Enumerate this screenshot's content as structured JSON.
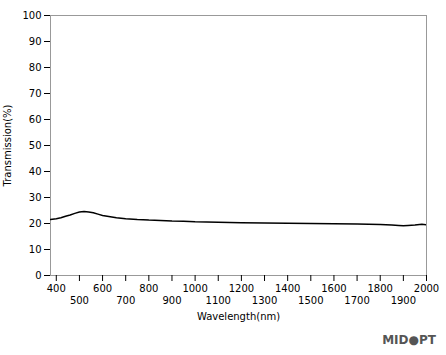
{
  "chart_data": {
    "type": "line",
    "x": [
      375,
      400,
      420,
      440,
      460,
      480,
      500,
      520,
      540,
      560,
      580,
      600,
      620,
      640,
      660,
      680,
      700,
      750,
      800,
      850,
      900,
      950,
      1000,
      1050,
      1100,
      1150,
      1200,
      1300,
      1400,
      1500,
      1600,
      1700,
      1750,
      1800,
      1850,
      1880,
      1900,
      1920,
      1950,
      1980,
      2000
    ],
    "values": [
      21.5,
      21.8,
      22.2,
      22.8,
      23.3,
      23.9,
      24.4,
      24.6,
      24.4,
      24.1,
      23.6,
      23.1,
      22.8,
      22.5,
      22.2,
      22.0,
      21.8,
      21.5,
      21.3,
      21.2,
      21.0,
      20.9,
      20.7,
      20.6,
      20.5,
      20.4,
      20.3,
      20.2,
      20.1,
      20.0,
      19.9,
      19.8,
      19.7,
      19.6,
      19.4,
      19.2,
      19.1,
      19.2,
      19.4,
      19.7,
      19.5
    ],
    "x_label": "Wavelength(nm)",
    "y_label": "Transmission(%)",
    "xlim": [
      375,
      2000
    ],
    "ylim": [
      0,
      100
    ],
    "xticks": [
      400,
      500,
      600,
      700,
      800,
      900,
      1000,
      1100,
      1200,
      1300,
      1400,
      1500,
      1600,
      1700,
      1800,
      1900,
      2000
    ],
    "yticks": [
      0,
      10,
      20,
      30,
      40,
      50,
      60,
      70,
      80,
      90,
      100
    ],
    "grid": false,
    "annotations": [
      "MID●PT"
    ]
  }
}
